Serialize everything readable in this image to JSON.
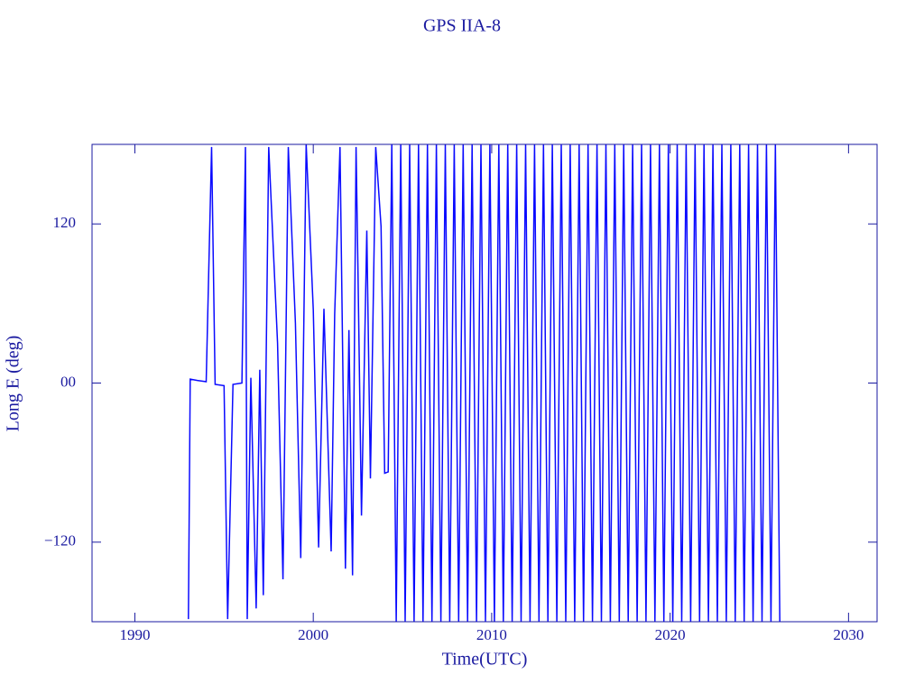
{
  "chart_data": {
    "type": "line",
    "title": "GPS IIA-8",
    "x_label": "Time(UTC)",
    "y_label": "Long E (deg)",
    "color": "#0a0aff",
    "xlim": [
      1987.6,
      2031.6
    ],
    "xticks": [
      1990,
      2000,
      2010,
      2020,
      2030
    ],
    "ylim": [
      -180,
      180
    ],
    "yticks": [
      {
        "value": -120,
        "label": "−120"
      },
      {
        "value": 0,
        "label": "00"
      },
      120
    ],
    "x": [
      1993.0,
      1993.1,
      1993.5,
      1994.0,
      1994.3,
      1994.5,
      1995.0,
      1995.2,
      1995.5,
      1996.0,
      1996.2,
      1996.3,
      1996.5,
      1996.8,
      1997.0,
      1997.2,
      1997.5,
      1998.0,
      1998.3,
      1998.6,
      1999.0,
      1999.3,
      1999.6,
      2000.0,
      2000.3,
      2000.6,
      2001.0,
      2001.2,
      2001.5,
      2001.8,
      2002.0,
      2002.2,
      2002.4,
      2002.5,
      2002.7,
      2003.0,
      2003.2,
      2003.5,
      2003.8,
      2004.0,
      2004.2,
      2004.4,
      2004.65,
      2004.9,
      2005.15,
      2005.4,
      2005.65,
      2005.9,
      2006.15,
      2006.4,
      2006.65,
      2006.9,
      2007.15,
      2007.4,
      2007.65,
      2007.9,
      2008.15,
      2008.4,
      2008.65,
      2008.9,
      2009.15,
      2009.4,
      2009.65,
      2009.9,
      2010.15,
      2010.4,
      2010.65,
      2010.9,
      2011.15,
      2011.4,
      2011.65,
      2011.9,
      2012.15,
      2012.4,
      2012.65,
      2012.9,
      2013.15,
      2013.4,
      2013.65,
      2013.9,
      2014.15,
      2014.4,
      2014.65,
      2014.9,
      2015.15,
      2015.4,
      2015.65,
      2015.9,
      2016.15,
      2016.4,
      2016.65,
      2016.9,
      2017.15,
      2017.4,
      2017.65,
      2017.9,
      2018.15,
      2018.4,
      2018.65,
      2018.9,
      2019.15,
      2019.4,
      2019.65,
      2019.9,
      2020.15,
      2020.4,
      2020.65,
      2020.9,
      2021.15,
      2021.4,
      2021.65,
      2021.9,
      2022.15,
      2022.4,
      2022.65,
      2022.9,
      2023.15,
      2023.4,
      2023.65,
      2023.9,
      2024.15,
      2024.4,
      2024.65,
      2024.9,
      2025.15,
      2025.4,
      2025.65,
      2025.9,
      2026.15
    ],
    "values": [
      -178,
      3,
      2,
      1,
      178,
      -1,
      -2,
      -178,
      -1,
      0,
      178,
      -178,
      4,
      -170,
      10,
      -160,
      178,
      30,
      -148,
      178,
      45,
      -132,
      180,
      55,
      -124,
      56,
      -127,
      52,
      178,
      -140,
      40,
      -145,
      178,
      90,
      -100,
      115,
      -72,
      178,
      118,
      -68,
      -67,
      180,
      -180,
      180,
      -180,
      180,
      -180,
      180,
      -180,
      180,
      -180,
      180,
      -180,
      180,
      -180,
      180,
      -180,
      180,
      -180,
      180,
      -180,
      180,
      -180,
      180,
      -180,
      180,
      -180,
      180,
      -180,
      180,
      -180,
      180,
      -180,
      180,
      -180,
      180,
      -180,
      180,
      -180,
      180,
      -180,
      180,
      -180,
      180,
      -180,
      180,
      -180,
      180,
      -180,
      180,
      -180,
      180,
      -180,
      180,
      -180,
      180,
      -180,
      180,
      -180,
      180,
      -180,
      180,
      -180,
      180,
      -180,
      180,
      -180,
      180,
      -180,
      180,
      -180,
      180,
      -180,
      180,
      -180,
      180,
      -180,
      180,
      -180,
      180,
      -180,
      180,
      -180,
      180,
      -180,
      180,
      -180,
      180,
      -180
    ]
  }
}
